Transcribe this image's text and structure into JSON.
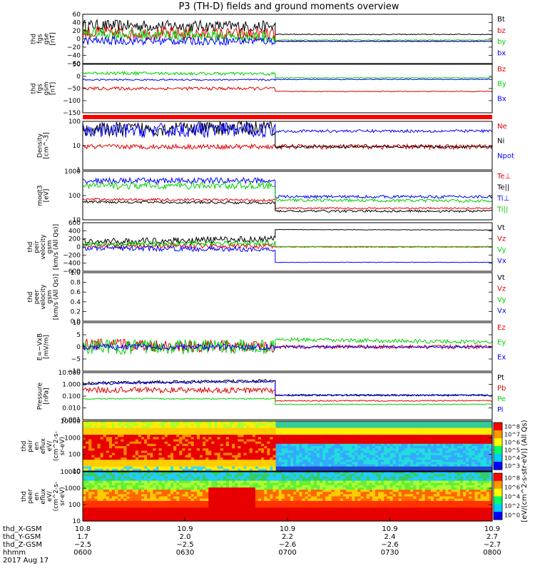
{
  "title": "P3 (TH-D) fields and ground moments overview",
  "colors": {
    "black": "#000000",
    "red": "#e00000",
    "green": "#00d000",
    "blue": "#0000ff",
    "orange": "#ff9900"
  },
  "chart_data": [
    {
      "type": "line",
      "panel": "fgs_fields",
      "ylabel_lines": [
        "thd",
        "fgs",
        "gse",
        "[nT]"
      ],
      "ylim": [
        -60,
        60
      ],
      "ytick_labels": [
        "60",
        "40",
        "20",
        "0",
        "−20",
        "−40",
        "−60"
      ],
      "legend": [
        "Bt",
        "bz",
        "by",
        "bx"
      ],
      "series": [
        {
          "name": "Bt",
          "color": "black",
          "segments": [
            [
              0,
              0.47,
              [
                33,
                30
              ],
              14
            ],
            [
              0.47,
              1,
              [
                11,
                11
              ],
              1
            ]
          ]
        },
        {
          "name": "bz",
          "color": "red",
          "segments": [
            [
              0,
              0.47,
              [
                15,
                10
              ],
              16
            ],
            [
              0.47,
              1,
              [
                -6,
                -6
              ],
              1
            ]
          ]
        },
        {
          "name": "by",
          "color": "green",
          "segments": [
            [
              0,
              0.47,
              [
                14,
                4
              ],
              14
            ],
            [
              0.47,
              1,
              [
                -3,
                -3
              ],
              1
            ]
          ]
        },
        {
          "name": "bx",
          "color": "blue",
          "segments": [
            [
              0,
              0.47,
              [
                -5,
                -5
              ],
              10
            ],
            [
              0.47,
              1,
              [
                -6,
                -6
              ],
              1
            ]
          ]
        }
      ]
    },
    {
      "type": "line",
      "panel": "fgs_gsm",
      "ylabel_lines": [
        "thd",
        "fgs",
        "gsm",
        "[nT]"
      ],
      "ylim": [
        -175,
        75
      ],
      "ytick_labels": [
        "50",
        "0",
        "−50",
        "−100",
        "−150"
      ],
      "legend": [
        "Bz",
        "By",
        "Bx"
      ],
      "series": [
        {
          "name": "Bz",
          "color": "red",
          "segments": [
            [
              0,
              0.47,
              [
                -50,
                -50
              ],
              8
            ],
            [
              0.47,
              1,
              [
                -65,
                -65
              ],
              2
            ]
          ]
        },
        {
          "name": "By",
          "color": "green",
          "segments": [
            [
              0,
              0.47,
              [
                30,
                25
              ],
              8
            ],
            [
              0.47,
              1,
              [
                5,
                5
              ],
              2
            ]
          ]
        },
        {
          "name": "Bx",
          "color": "blue",
          "segments": [
            [
              0,
              0.47,
              [
                -5,
                -5
              ],
              4
            ],
            [
              0.47,
              1,
              [
                -3,
                -3
              ],
              2
            ]
          ]
        }
      ]
    },
    {
      "type": "line",
      "panel": "density",
      "ylabel_lines": [
        "Density",
        "[cm^-3]"
      ],
      "yscale": "log",
      "ylim": [
        1,
        100
      ],
      "ytick_labels": [
        "100",
        "10",
        "1"
      ],
      "legend": [
        "Ne",
        "Ni",
        "Npot"
      ],
      "series": [
        {
          "name": "Ne",
          "color": "red",
          "segments": [
            [
              0,
              1,
              [
                9,
                9
              ],
              0.1
            ]
          ]
        },
        {
          "name": "Ni",
          "color": "black",
          "segments": [
            [
              0,
              0.47,
              [
                45,
                55
              ],
              0.3
            ],
            [
              0.47,
              1,
              [
                9,
                9
              ],
              0.05
            ]
          ]
        },
        {
          "name": "Npot",
          "color": "blue",
          "segments": [
            [
              0,
              0.47,
              [
                40,
                45
              ],
              0.3
            ],
            [
              0.47,
              1,
              [
                40,
                40
              ],
              0.06
            ]
          ]
        }
      ]
    },
    {
      "type": "line",
      "panel": "temperature",
      "ylabel_lines": [
        "moqt3",
        "[eV]"
      ],
      "yscale": "log",
      "ylim": [
        10,
        1000
      ],
      "ytick_labels": [
        "1000",
        "100",
        "10"
      ],
      "legend": [
        "Te⊥",
        "Te||",
        "Ti⊥",
        "Ti||"
      ],
      "series": [
        {
          "name": "Te⊥",
          "color": "red",
          "segments": [
            [
              0,
              0.47,
              [
                70,
                65
              ],
              0.05
            ],
            [
              0.47,
              1,
              [
                30,
                30
              ],
              0.03
            ]
          ]
        },
        {
          "name": "Te||",
          "color": "black",
          "segments": [
            [
              0,
              0.47,
              [
                55,
                50
              ],
              0.05
            ],
            [
              0.47,
              1,
              [
                23,
                23
              ],
              0.05
            ]
          ]
        },
        {
          "name": "Ti⊥",
          "color": "blue",
          "segments": [
            [
              0,
              0.47,
              [
                400,
                420
              ],
              0.12
            ],
            [
              0.47,
              1,
              [
                90,
                90
              ],
              0.06
            ]
          ]
        },
        {
          "name": "Ti||",
          "color": "green",
          "segments": [
            [
              0,
              0.47,
              [
                250,
                260
              ],
              0.15
            ],
            [
              0.47,
              1,
              [
                65,
                60
              ],
              0.06
            ]
          ]
        }
      ]
    },
    {
      "type": "line",
      "panel": "peir_velocity",
      "ylabel_lines": [
        "thd",
        "peir",
        "velocity",
        "gsm",
        "[km/s (All Qs)]"
      ],
      "ylim": [
        -600,
        600
      ],
      "ytick_labels": [
        "600",
        "400",
        "200",
        "0",
        "−200",
        "−400",
        "−600"
      ],
      "legend": [
        "Vt",
        "Vz",
        "Vy",
        "Vx"
      ],
      "series": [
        {
          "name": "Vt",
          "color": "black",
          "segments": [
            [
              0,
              0.47,
              [
                120,
                200
              ],
              80
            ],
            [
              0.47,
              1,
              [
                430,
                420
              ],
              6
            ]
          ]
        },
        {
          "name": "Vz",
          "color": "red",
          "segments": [
            [
              0,
              0.47,
              [
                40,
                20
              ],
              60
            ],
            [
              0.47,
              1,
              [
                0,
                0
              ],
              8
            ]
          ]
        },
        {
          "name": "Vy",
          "color": "green",
          "segments": [
            [
              0,
              0.47,
              [
                60,
                100
              ],
              60
            ],
            [
              0.47,
              1,
              [
                10,
                10
              ],
              6
            ]
          ]
        },
        {
          "name": "Vx",
          "color": "blue",
          "segments": [
            [
              0,
              0.47,
              [
                -30,
                -60
              ],
              60
            ],
            [
              0.47,
              1,
              [
                -380,
                -380
              ],
              6
            ]
          ]
        }
      ]
    },
    {
      "type": "line",
      "panel": "peer_velocity",
      "ylabel_lines": [
        "thd",
        "peer",
        "velocity",
        "gsm",
        "[km/s (All Qs)]"
      ],
      "ylim": [
        0,
        1
      ],
      "ytick_labels": [
        "1.0",
        "0.8",
        "0.6",
        "0.4",
        "0.2",
        "0.0"
      ],
      "legend": [
        "Vt",
        "Vz",
        "Vy",
        "Vx"
      ],
      "series": []
    },
    {
      "type": "line",
      "panel": "efield",
      "ylabel_lines": [
        "E=−VxB",
        "[mV/m]"
      ],
      "ylim": [
        -10,
        10
      ],
      "ytick_labels": [
        "10",
        "5",
        "0",
        "−5",
        "−10"
      ],
      "legend": [
        "Ez",
        "Ey",
        "Ex"
      ],
      "series": [
        {
          "name": "Ez",
          "color": "red",
          "segments": [
            [
              0,
              0.47,
              [
                1,
                0
              ],
              2.5
            ],
            [
              0.47,
              1,
              [
                0,
                0
              ],
              0.8
            ]
          ]
        },
        {
          "name": "Ey",
          "color": "green",
          "segments": [
            [
              0,
              0.47,
              [
                0,
                0
              ],
              3
            ],
            [
              0.47,
              1,
              [
                3,
                2
              ],
              0.8
            ]
          ]
        },
        {
          "name": "Ex",
          "color": "blue",
          "segments": [
            [
              0,
              0.47,
              [
                0,
                0
              ],
              1.2
            ],
            [
              0.47,
              1,
              [
                0,
                0
              ],
              0.4
            ]
          ]
        }
      ]
    },
    {
      "type": "line",
      "panel": "pressure",
      "ylabel_lines": [
        "Pressure",
        "[nPa]"
      ],
      "yscale": "log",
      "ylim": [
        0.001,
        10
      ],
      "ytick_labels": [
        "10.000",
        "1.000",
        "0.100",
        "0.010",
        "0.001"
      ],
      "legend": [
        "Pt",
        "Pb",
        "Pe",
        "Pi"
      ],
      "series": [
        {
          "name": "Pt",
          "color": "black",
          "segments": [
            [
              0,
              0.47,
              [
                1.3,
                2
              ],
              0.12
            ],
            [
              0.47,
              1,
              [
                0.12,
                0.12
              ],
              0.08
            ]
          ]
        },
        {
          "name": "Pb",
          "color": "red",
          "segments": [
            [
              0,
              0.47,
              [
                0.35,
                0.3
              ],
              0.25
            ],
            [
              0.47,
              1,
              [
                0.04,
                0.04
              ],
              0.05
            ]
          ]
        },
        {
          "name": "Pe",
          "color": "green",
          "segments": [
            [
              0,
              0.47,
              [
                0.06,
                0.06
              ],
              0.05
            ],
            [
              0.47,
              1,
              [
                0.02,
                0.02
              ],
              0.04
            ]
          ]
        },
        {
          "name": "Pi",
          "color": "blue",
          "segments": [
            [
              0,
              0.47,
              [
                1.1,
                1.8
              ],
              0.1
            ],
            [
              0.47,
              1,
              [
                0.12,
                0.12
              ],
              0.06
            ]
          ]
        }
      ]
    },
    {
      "type": "heatmap",
      "panel": "peir_spectrogram",
      "ylabel_lines": [
        "thd",
        "peir",
        "en",
        "eflux",
        "eV/",
        "(cm^2-s-",
        "sr-eV)"
      ],
      "yscale": "log",
      "ylim": [
        5,
        25000
      ],
      "ytick_labels": [
        "10000",
        "1000",
        "100",
        "10"
      ],
      "colorbar_labels": [
        "10^8",
        "10^7",
        "10^6",
        "10^5",
        "10^4",
        "10^3"
      ]
    },
    {
      "type": "heatmap",
      "panel": "peer_spectrogram",
      "ylabel_lines": [
        "thd",
        "peer",
        "en",
        "eflux",
        "eV/",
        "(cm^2-s-",
        "sr-eV)"
      ],
      "yscale": "log",
      "ylim": [
        5,
        25000
      ],
      "ytick_labels": [
        "10000",
        "1000",
        "100",
        "10"
      ],
      "colorbar_labels": [
        "10^8",
        "10^6",
        "10^4",
        "10^2",
        "10^0"
      ]
    }
  ],
  "colorbar_title": "[eV/(cm^2-s-str-eV)] (All Qs)",
  "x_axis": {
    "row_labels": [
      "thd_X-GSM",
      "thd_Y-GSM",
      "thd_Z-GSM",
      "hhmm",
      "2017 Aug 17"
    ],
    "ticks": [
      {
        "x": "10.8",
        "y": "1.7",
        "z": "−2.5",
        "hhmm": "0600"
      },
      {
        "x": "10.9",
        "y": "2.0",
        "z": "−2.5",
        "hhmm": "0630"
      },
      {
        "x": "10.9",
        "y": "2.2",
        "z": "−2.6",
        "hhmm": "0700"
      },
      {
        "x": "10.9",
        "y": "2.4",
        "z": "−2.6",
        "hhmm": "0730"
      },
      {
        "x": "10.9",
        "y": "2.7",
        "z": "−2.7",
        "hhmm": "0800"
      }
    ]
  }
}
